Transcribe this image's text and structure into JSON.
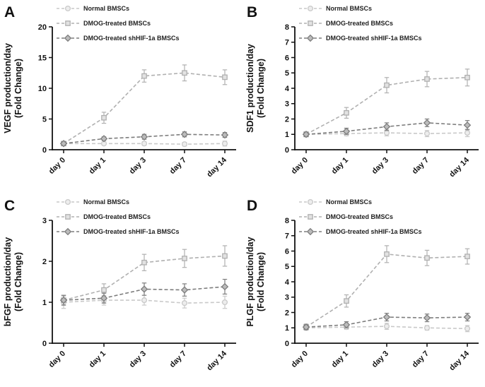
{
  "figure": {
    "background": "#ffffff",
    "legend_labels": [
      "Normal BMSCs",
      "DMOG-treated BMSCs",
      "DMOG-treated shHIF-1a BMSCs"
    ],
    "axis_color": "#111111"
  },
  "chart_data": [
    {
      "type": "line",
      "panel": "A",
      "title": "",
      "xlabel": "",
      "ylabel_line1": "VEGF production/day",
      "ylabel_line2": "(Fold Change)",
      "categories": [
        "day 0",
        "day 1",
        "day 3",
        "day 7",
        "day 14"
      ],
      "ylim": [
        0,
        20
      ],
      "yticks": [
        0,
        5,
        10,
        15,
        20
      ],
      "grid": false,
      "legend_position": "top-left-inside",
      "series": [
        {
          "name": "Normal BMSCs",
          "marker": "circle",
          "color": "#c9c9c9",
          "fill": "#ededed",
          "values": [
            1.0,
            1.0,
            1.0,
            0.9,
            1.0
          ],
          "errors": [
            0.3,
            0.2,
            0.3,
            0.3,
            0.4
          ]
        },
        {
          "name": "DMOG-treated BMSCs",
          "marker": "square",
          "color": "#b0b0b0",
          "fill": "#e2e2e2",
          "values": [
            1.0,
            5.2,
            12.0,
            12.5,
            11.8
          ],
          "errors": [
            0.3,
            0.9,
            1.0,
            1.3,
            1.2
          ]
        },
        {
          "name": "DMOG-treated shHIF-1a BMSCs",
          "marker": "diamond",
          "color": "#7d7d7d",
          "fill": "#bcbcbc",
          "values": [
            1.0,
            1.8,
            2.1,
            2.5,
            2.4
          ],
          "errors": [
            0.3,
            0.3,
            0.4,
            0.4,
            0.4
          ]
        }
      ]
    },
    {
      "type": "line",
      "panel": "B",
      "title": "",
      "xlabel": "",
      "ylabel_line1": "SDF1 production/day",
      "ylabel_line2": "(Fold Change)",
      "categories": [
        "day 0",
        "day 1",
        "day 3",
        "day 7",
        "day 14"
      ],
      "ylim": [
        0,
        8
      ],
      "yticks": [
        0,
        1,
        2,
        3,
        4,
        5,
        6,
        7,
        8
      ],
      "grid": false,
      "legend_position": "top-left-inside",
      "series": [
        {
          "name": "Normal BMSCs",
          "marker": "circle",
          "color": "#c9c9c9",
          "fill": "#ededed",
          "values": [
            1.0,
            1.05,
            1.1,
            1.05,
            1.1
          ],
          "errors": [
            0.15,
            0.15,
            0.2,
            0.2,
            0.25
          ]
        },
        {
          "name": "DMOG-treated BMSCs",
          "marker": "square",
          "color": "#b0b0b0",
          "fill": "#e2e2e2",
          "values": [
            1.0,
            2.4,
            4.2,
            4.6,
            4.7
          ],
          "errors": [
            0.15,
            0.35,
            0.5,
            0.5,
            0.55
          ]
        },
        {
          "name": "DMOG-treated shHIF-1a BMSCs",
          "marker": "diamond",
          "color": "#7d7d7d",
          "fill": "#bcbcbc",
          "values": [
            1.0,
            1.2,
            1.5,
            1.75,
            1.6
          ],
          "errors": [
            0.15,
            0.2,
            0.25,
            0.25,
            0.3
          ]
        }
      ]
    },
    {
      "type": "line",
      "panel": "C",
      "title": "",
      "xlabel": "",
      "ylabel_line1": "bFGF production/day",
      "ylabel_line2": "(Fold Change)",
      "categories": [
        "day 0",
        "day 1",
        "day 3",
        "day 7",
        "day 14"
      ],
      "ylim": [
        0,
        3
      ],
      "yticks": [
        0,
        1,
        2,
        3
      ],
      "grid": false,
      "legend_position": "top-left-inside",
      "series": [
        {
          "name": "Normal BMSCs",
          "marker": "circle",
          "color": "#c9c9c9",
          "fill": "#ededed",
          "values": [
            1.0,
            1.05,
            1.05,
            0.98,
            1.0
          ],
          "errors": [
            0.15,
            0.12,
            0.12,
            0.12,
            0.15
          ]
        },
        {
          "name": "DMOG-treated BMSCs",
          "marker": "square",
          "color": "#b0b0b0",
          "fill": "#e2e2e2",
          "values": [
            1.05,
            1.3,
            1.97,
            2.07,
            2.13
          ],
          "errors": [
            0.12,
            0.15,
            0.2,
            0.22,
            0.25
          ]
        },
        {
          "name": "DMOG-treated shHIF-1a BMSCs",
          "marker": "diamond",
          "color": "#7d7d7d",
          "fill": "#bcbcbc",
          "values": [
            1.05,
            1.1,
            1.32,
            1.3,
            1.38
          ],
          "errors": [
            0.12,
            0.12,
            0.15,
            0.15,
            0.18
          ]
        }
      ]
    },
    {
      "type": "line",
      "panel": "D",
      "title": "",
      "xlabel": "",
      "ylabel_line1": "PLGF production/day",
      "ylabel_line2": "(Fold Change)",
      "categories": [
        "day 0",
        "day 1",
        "day 3",
        "day 7",
        "day 14"
      ],
      "ylim": [
        0,
        8
      ],
      "yticks": [
        0,
        1,
        2,
        3,
        4,
        5,
        6,
        7,
        8
      ],
      "grid": false,
      "legend_position": "top-left-inside",
      "series": [
        {
          "name": "Normal BMSCs",
          "marker": "circle",
          "color": "#c9c9c9",
          "fill": "#ededed",
          "values": [
            1.0,
            1.05,
            1.1,
            1.0,
            0.95
          ],
          "errors": [
            0.15,
            0.15,
            0.2,
            0.15,
            0.2
          ]
        },
        {
          "name": "DMOG-treated BMSCs",
          "marker": "square",
          "color": "#b0b0b0",
          "fill": "#e2e2e2",
          "values": [
            1.05,
            2.75,
            5.8,
            5.55,
            5.65
          ],
          "errors": [
            0.2,
            0.4,
            0.55,
            0.5,
            0.5
          ]
        },
        {
          "name": "DMOG-treated shHIF-1a BMSCs",
          "marker": "diamond",
          "color": "#7d7d7d",
          "fill": "#bcbcbc",
          "values": [
            1.05,
            1.2,
            1.7,
            1.65,
            1.7
          ],
          "errors": [
            0.15,
            0.2,
            0.25,
            0.25,
            0.25
          ]
        }
      ]
    }
  ]
}
